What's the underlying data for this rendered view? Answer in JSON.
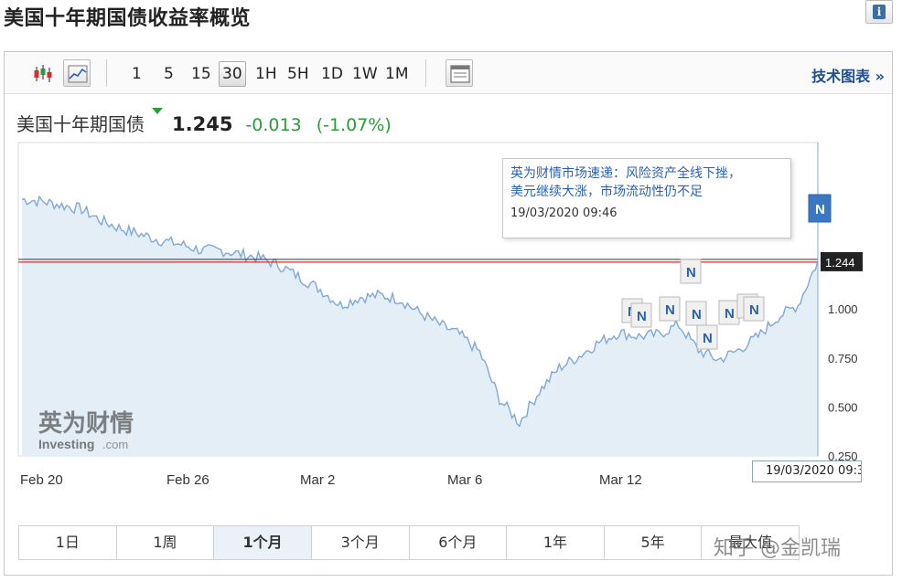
{
  "page": {
    "title": "美国十年期国债收益率概览",
    "info_icon": "i"
  },
  "toolbar": {
    "icons": [
      "candlestick-icon",
      "line-chart-icon",
      "table-view-icon"
    ],
    "intervals": [
      "1",
      "5",
      "15",
      "30",
      "1H",
      "5H",
      "1D",
      "1W",
      "1M"
    ],
    "active_interval": "30",
    "tech_link": "技术图表 »"
  },
  "quote": {
    "name": "美国十年期国债",
    "last": "1.245",
    "change": "-0.013",
    "change_pct": "(-1.07%)",
    "direction": "down",
    "color": "#2a9d3a"
  },
  "tooltip": {
    "text_line1": "英为财情市场速递：风险资产全线下挫，",
    "text_line2": "美元继续大涨，市场流动性仍不足",
    "time": "19/03/2020 09:46"
  },
  "cursor_date": "19/03/2020 09:3",
  "watermark": {
    "logo_cn": "英为财情",
    "logo_en": "Investing",
    "logo_suffix": ".com",
    "right_text": "知乎 @金凯瑞"
  },
  "range": {
    "items": [
      "1日",
      "1周",
      "1个月",
      "3个月",
      "6个月",
      "1年",
      "5年",
      "最大值"
    ],
    "active": "1个月"
  },
  "chart_data": {
    "type": "area",
    "title": "美国十年期国债",
    "x_ticks": [
      "Feb 20",
      "Feb 26",
      "Mar 2",
      "Mar 6",
      "Mar 12"
    ],
    "y_ticks": [
      "1.000",
      "0.750",
      "0.500",
      "0.250"
    ],
    "ylim": [
      0.25,
      1.85
    ],
    "current_value_label": "1.244",
    "reference_line": 1.244,
    "colors": {
      "line": "#7fa9d4",
      "fill": "#e4eef7",
      "ref_dark": "#333333",
      "ref_red": "#d32f2f",
      "accent": "#2b62b0"
    },
    "series": [
      {
        "x": [
          "Feb 20",
          "Feb 20",
          "Feb 21",
          "Feb 21",
          "Feb 24",
          "Feb 24",
          "Feb 25",
          "Feb 25",
          "Feb 26",
          "Feb 26",
          "Feb 27",
          "Feb 27",
          "Feb 28",
          "Feb 28",
          "Mar 2",
          "Mar 2",
          "Mar 3",
          "Mar 3",
          "Mar 4",
          "Mar 4",
          "Mar 5",
          "Mar 5",
          "Mar 6",
          "Mar 6",
          "Mar 9",
          "Mar 9",
          "Mar 10",
          "Mar 10",
          "Mar 11",
          "Mar 11",
          "Mar 12",
          "Mar 12",
          "Mar 13",
          "Mar 13",
          "Mar 16",
          "Mar 16",
          "Mar 17",
          "Mar 17",
          "Mar 18",
          "Mar 18",
          "Mar 19"
        ],
        "values": [
          1.56,
          1.55,
          1.53,
          1.51,
          1.45,
          1.41,
          1.38,
          1.35,
          1.33,
          1.3,
          1.3,
          1.28,
          1.26,
          1.22,
          1.16,
          1.1,
          1.02,
          1.06,
          1.07,
          1.05,
          0.98,
          0.92,
          0.87,
          0.78,
          0.54,
          0.42,
          0.58,
          0.7,
          0.76,
          0.83,
          0.88,
          0.86,
          0.87,
          0.92,
          0.79,
          0.74,
          0.79,
          0.86,
          0.96,
          1.02,
          1.245
        ]
      }
    ],
    "news_markers": [
      "N",
      "N",
      "N",
      "N",
      "N",
      "N",
      "N",
      "N",
      "N",
      "N"
    ]
  }
}
